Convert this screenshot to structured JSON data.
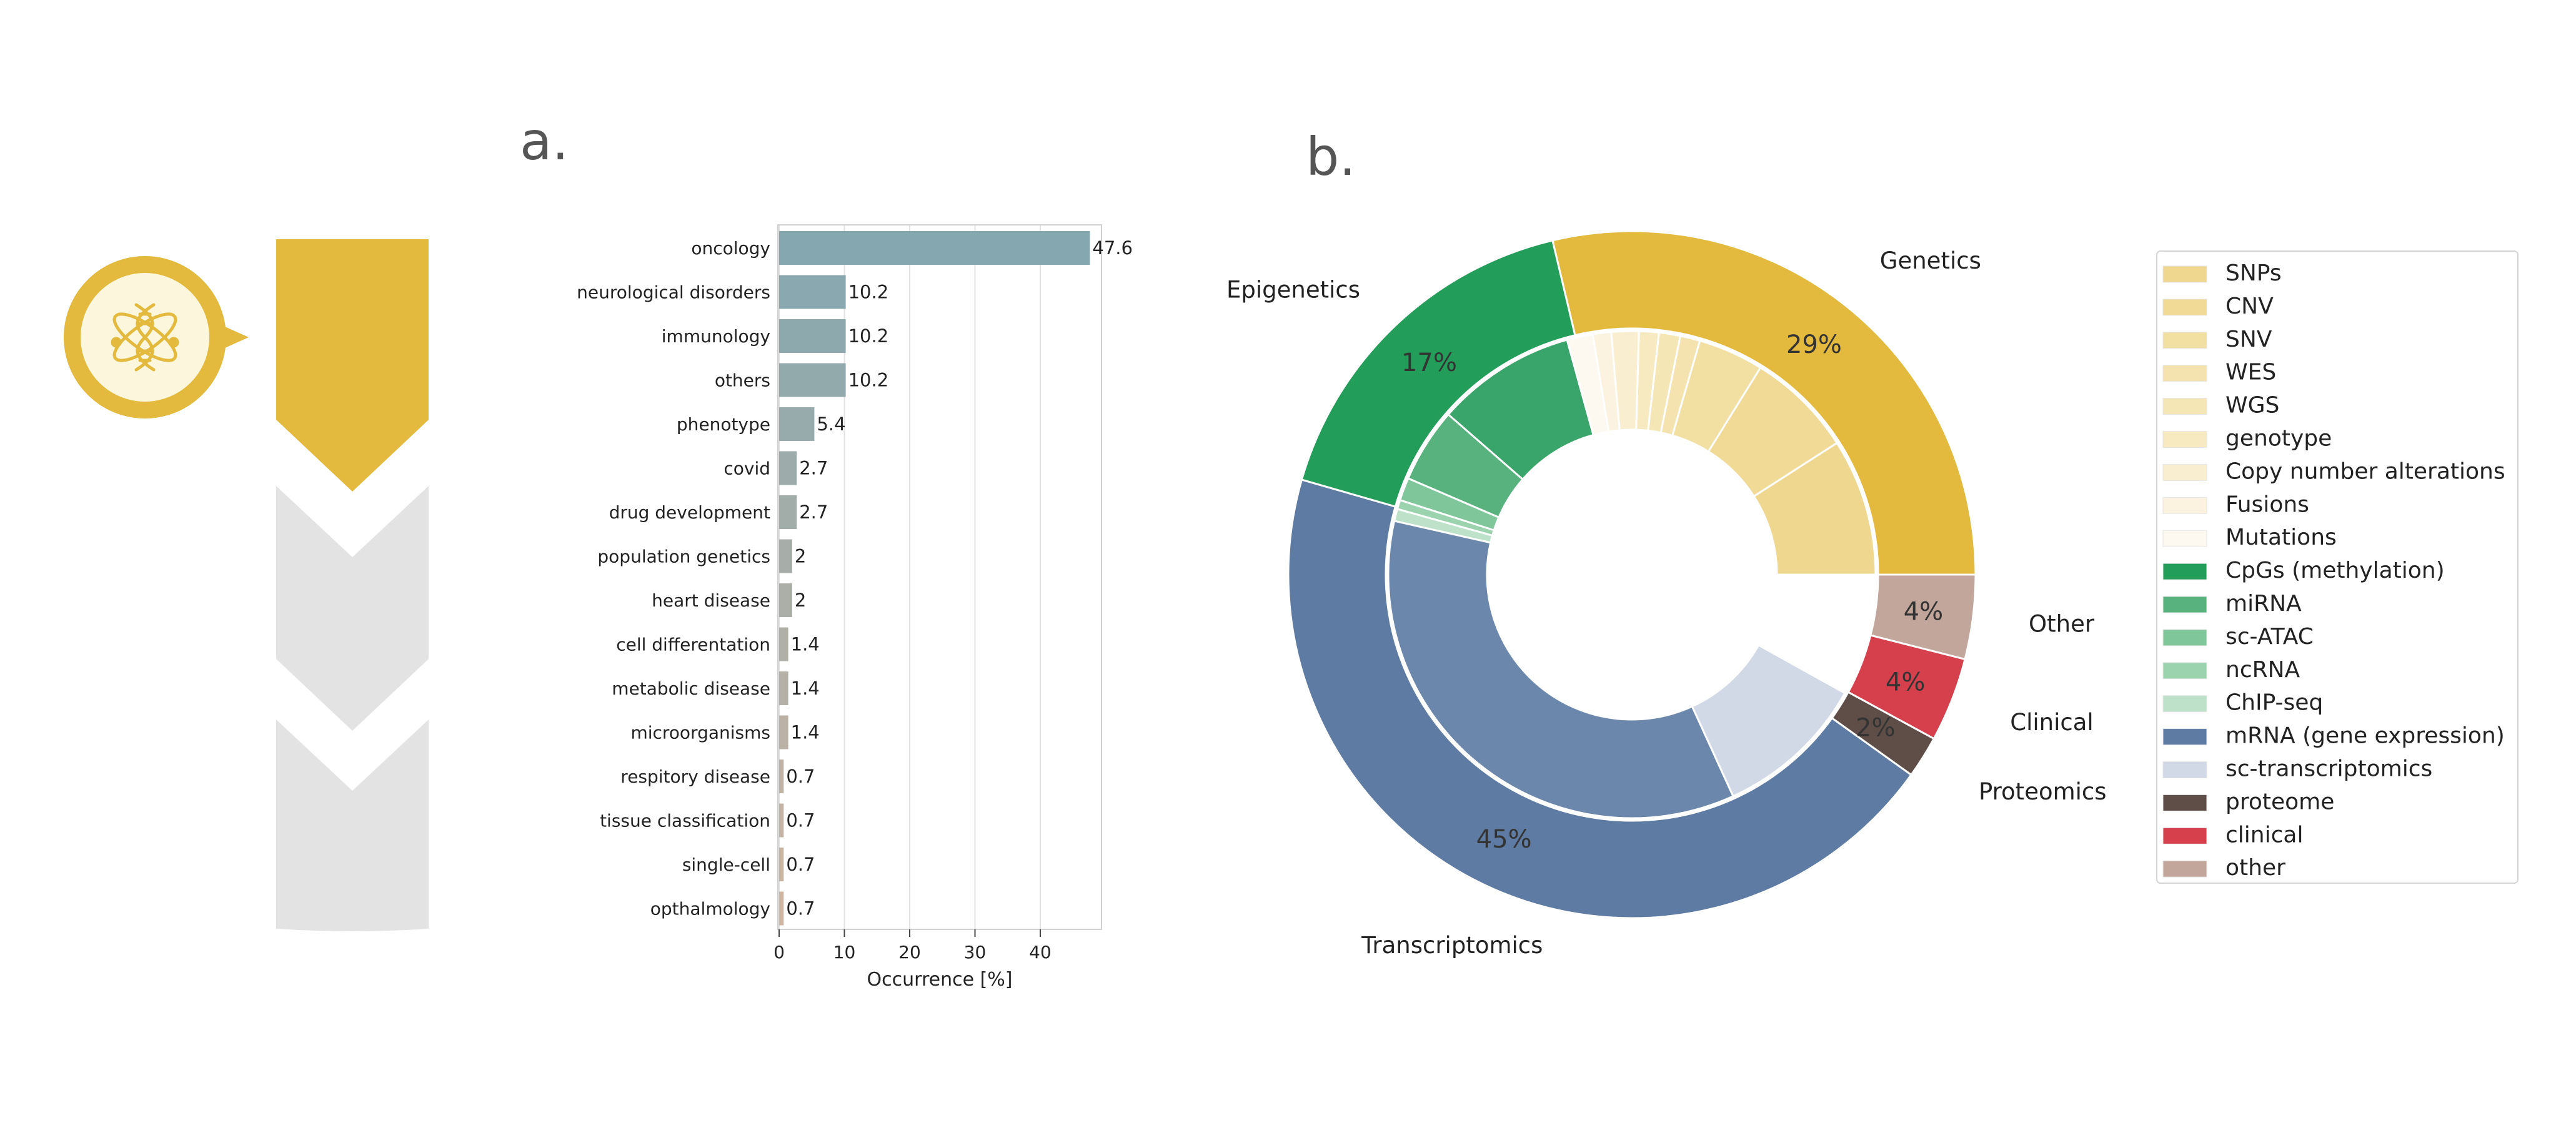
{
  "panels": {
    "a_label": "a.",
    "b_label": "b."
  },
  "colors": {
    "gold": "#E3BA3E",
    "gold_light": "#FCF6DC",
    "gray_step": "#E3E3E3"
  },
  "icon": {
    "name": "dna-atom-icon"
  },
  "chart_data": [
    {
      "type": "bar",
      "orientation": "horizontal",
      "categories": [
        "oncology",
        "neurological disorders",
        "immunology",
        "others",
        "phenotype",
        "covid",
        "drug development",
        "population genetics",
        "heart disease",
        "cell differentation",
        "metabolic disease",
        "microorganisms",
        "respitory disease",
        "tissue classification",
        "single-cell",
        "opthalmology"
      ],
      "values": [
        47.6,
        10.2,
        10.2,
        10.2,
        5.4,
        2.7,
        2.7,
        2,
        2,
        1.4,
        1.4,
        1.4,
        0.7,
        0.7,
        0.7,
        0.7
      ],
      "value_labels": [
        "47.6",
        "10.2",
        "10.2",
        "10.2",
        "5.4",
        "2.7",
        "2.7",
        "2",
        "2",
        "1.4",
        "1.4",
        "1.4",
        "0.7",
        "0.7",
        "0.7",
        "0.7"
      ],
      "xlabel": "Occurrence [%]",
      "ylabel": "",
      "xlim": [
        0,
        50
      ],
      "xticks": [
        0,
        10,
        20,
        30,
        40
      ],
      "grid": "vertical",
      "bar_colors": [
        "#84A7B0",
        "#89A8AF",
        "#8EA9AE",
        "#93AAAD",
        "#98ABAC",
        "#9DACAB",
        "#A2ADAA",
        "#A7AEA9",
        "#ACAFA8",
        "#B1B0A7",
        "#B6B1A6",
        "#BBB2A5",
        "#C0B3A4",
        "#C5B4A3",
        "#CAB5A2",
        "#CFB6A1"
      ]
    },
    {
      "type": "pie",
      "style": "nested-donut",
      "start_angle_deg": 0,
      "direction": "counterclockwise",
      "outer": [
        {
          "label": "Genetics",
          "value": 29,
          "pct_label": "29%",
          "color": "#E3BA3E"
        },
        {
          "label": "Epigenetics",
          "value": 17,
          "pct_label": "17%",
          "color": "#239E5A"
        },
        {
          "label": "Transcriptomics",
          "value": 45,
          "pct_label": "45%",
          "color": "#5E7BA3"
        },
        {
          "label": "Proteomics",
          "value": 2,
          "pct_label": "2%",
          "color": "#5E4E47"
        },
        {
          "label": "Clinical",
          "value": 4,
          "pct_label": "4%",
          "color": "#D6404C"
        },
        {
          "label": "Other",
          "value": 4,
          "pct_label": "4%",
          "color": "#C2A69C"
        }
      ],
      "inner": [
        {
          "label": "SNPs",
          "value": 9.0,
          "color": "#EFD78F"
        },
        {
          "label": "CNV",
          "value": 7.0,
          "color": "#F0DA95"
        },
        {
          "label": "SNV",
          "value": 4.3,
          "color": "#F2DFA2"
        },
        {
          "label": "WES",
          "value": 1.3,
          "color": "#F4E3AE"
        },
        {
          "label": "WGS",
          "value": 1.4,
          "color": "#F5E6B6"
        },
        {
          "label": "genotype",
          "value": 1.3,
          "color": "#F7EAC0"
        },
        {
          "label": "Copy number alterations",
          "value": 1.8,
          "color": "#F9EFD0"
        },
        {
          "label": "Fusions",
          "value": 1.2,
          "color": "#FBF3E0"
        },
        {
          "label": "Mutations",
          "value": 1.7,
          "color": "#FDF9F0"
        },
        {
          "label": "CpGs (methylation)",
          "value": 9.2,
          "color": "#3AA56A"
        },
        {
          "label": "miRNA",
          "value": 4.9,
          "color": "#57B27D"
        },
        {
          "label": "sc-ATAC",
          "value": 1.5,
          "color": "#7FC69A"
        },
        {
          "label": "ncRNA",
          "value": 0.6,
          "color": "#9AD3AE"
        },
        {
          "label": "ChIP-seq",
          "value": 0.8,
          "color": "#BDE2C9"
        },
        {
          "label": "mRNA (gene expression)",
          "value": 35.0,
          "color": "#6C87AC"
        },
        {
          "label": "sc-transcriptomics",
          "value": 10.0,
          "color": "#D2D9E6"
        },
        {
          "label": "proteome",
          "value": 0.0,
          "color": "#5E4E47"
        },
        {
          "label": "clinical",
          "value": 0.0,
          "color": "#D6404C"
        },
        {
          "label": "other",
          "value": 8.0,
          "color": "#FFFFFF"
        }
      ],
      "legend": {
        "placement": "right",
        "items": [
          {
            "label": "SNPs",
            "color": "#EFD78F"
          },
          {
            "label": "CNV",
            "color": "#F0DA95"
          },
          {
            "label": "SNV",
            "color": "#F2DFA2"
          },
          {
            "label": "WES",
            "color": "#F4E3AE"
          },
          {
            "label": "WGS",
            "color": "#F5E6B6"
          },
          {
            "label": "genotype",
            "color": "#F7EAC0"
          },
          {
            "label": "Copy number alterations",
            "color": "#F9EFD0"
          },
          {
            "label": "Fusions",
            "color": "#FBF3E0"
          },
          {
            "label": "Mutations",
            "color": "#FDF9F0"
          },
          {
            "label": "CpGs (methylation)",
            "color": "#239E5A"
          },
          {
            "label": "miRNA",
            "color": "#57B27D"
          },
          {
            "label": "sc-ATAC",
            "color": "#7FC69A"
          },
          {
            "label": "ncRNA",
            "color": "#9AD3AE"
          },
          {
            "label": "ChIP-seq",
            "color": "#BDE2C9"
          },
          {
            "label": "mRNA (gene expression)",
            "color": "#5E7BA3"
          },
          {
            "label": "sc-transcriptomics",
            "color": "#D2D9E6"
          },
          {
            "label": "proteome",
            "color": "#5E4E47"
          },
          {
            "label": "clinical",
            "color": "#D6404C"
          },
          {
            "label": "other",
            "color": "#C2A69C"
          }
        ]
      }
    }
  ]
}
